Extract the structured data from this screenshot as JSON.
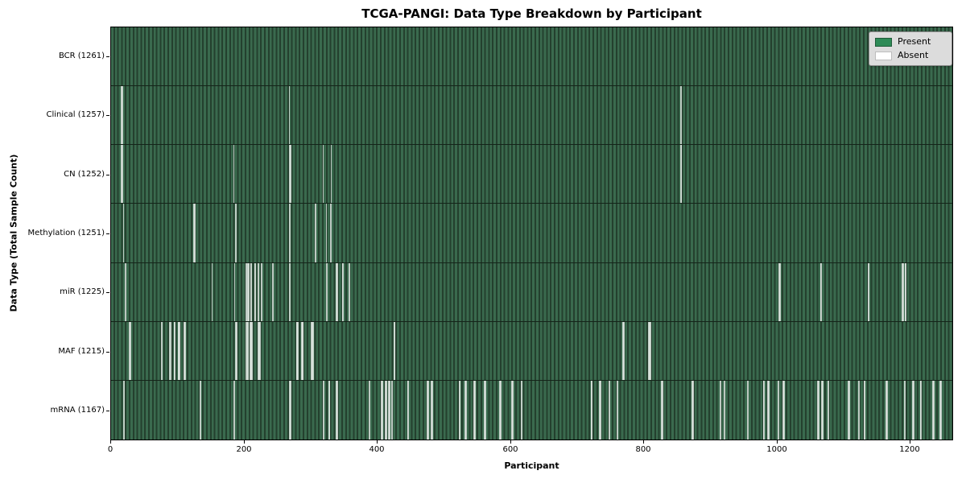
{
  "figure": {
    "title": "TCGA-PANGI: Data Type Breakdown by Participant",
    "xlabel": "Participant",
    "ylabel": "Data Type (Total Sample Count)"
  },
  "legend": {
    "items": [
      {
        "label": "Present",
        "color": "#2e8b57"
      },
      {
        "label": "Absent",
        "color": "#ffffff"
      }
    ]
  },
  "chart_data": {
    "type": "heatmap",
    "title": "TCGA-PANGI: Data Type Breakdown by Participant",
    "xlabel": "Participant",
    "ylabel": "Data Type (Total Sample Count)",
    "legend": [
      "Present",
      "Absent"
    ],
    "colors": {
      "present_fill": "#2e8b57",
      "bar_edge": "#000000",
      "absent_fill": "#ffffff",
      "legend_bg": "#dcdcdc"
    },
    "x_axis": {
      "label": "Participant",
      "ticks": [
        0,
        200,
        400,
        600,
        800,
        1000,
        1200
      ],
      "min": 0,
      "max": 1265,
      "n_participants": 1261
    },
    "grid": false,
    "legend_position": "upper right",
    "rows": [
      {
        "label": "BCR (1261)",
        "name": "BCR",
        "present_count": 1261,
        "absent_count": 0,
        "absent_participants": []
      },
      {
        "label": "Clinical (1257)",
        "name": "Clinical",
        "present_count": 1257,
        "absent_count": 4,
        "absent_participants": [
          15,
          16,
          267,
          856
        ]
      },
      {
        "label": "CN (1252)",
        "name": "CN",
        "present_count": 1252,
        "absent_count": 9,
        "absent_participants": [
          15,
          16,
          184,
          268,
          269,
          318,
          330,
          856,
          857
        ]
      },
      {
        "label": "Methylation (1251)",
        "name": "Methylation",
        "present_count": 1251,
        "absent_count": 10,
        "absent_participants": [
          18,
          124,
          125,
          187,
          268,
          306,
          307,
          323,
          329,
          330
        ]
      },
      {
        "label": "miR (1225)",
        "name": "miR",
        "present_count": 1225,
        "absent_count": 36,
        "absent_participants": [
          21,
          151,
          185,
          202,
          203,
          205,
          206,
          209,
          210,
          215,
          216,
          220,
          221,
          225,
          226,
          242,
          243,
          268,
          323,
          324,
          338,
          339,
          347,
          348,
          357,
          358,
          1004,
          1005,
          1066,
          1067,
          1138,
          1139,
          1189,
          1190,
          1193,
          1194
        ]
      },
      {
        "label": "MAF (1215)",
        "name": "MAF",
        "present_count": 1215,
        "absent_count": 46,
        "absent_participants": [
          27,
          28,
          75,
          76,
          87,
          88,
          89,
          94,
          95,
          100,
          101,
          102,
          109,
          110,
          111,
          187,
          188,
          202,
          203,
          204,
          205,
          208,
          209,
          210,
          211,
          220,
          221,
          222,
          223,
          278,
          279,
          280,
          286,
          287,
          288,
          300,
          301,
          302,
          303,
          425,
          426,
          769,
          770,
          808,
          809,
          810
        ]
      },
      {
        "label": "mRNA (1167)",
        "name": "mRNA",
        "present_count": 1167,
        "absent_count": 94,
        "absent_participants": [
          18,
          19,
          133,
          134,
          184,
          185,
          268,
          269,
          318,
          319,
          327,
          328,
          338,
          339,
          387,
          388,
          406,
          407,
          412,
          413,
          417,
          418,
          421,
          422,
          445,
          446,
          475,
          476,
          481,
          482,
          523,
          524,
          532,
          533,
          545,
          546,
          561,
          562,
          584,
          585,
          602,
          603,
          616,
          617,
          721,
          722,
          734,
          735,
          748,
          749,
          760,
          761,
          827,
          828,
          873,
          874,
          915,
          916,
          921,
          922,
          956,
          957,
          980,
          981,
          987,
          988,
          1002,
          1003,
          1010,
          1011,
          1062,
          1063,
          1068,
          1069,
          1077,
          1078,
          1108,
          1109,
          1123,
          1124,
          1132,
          1133,
          1165,
          1166,
          1192,
          1193,
          1205,
          1206,
          1216,
          1217,
          1235,
          1236,
          1246,
          1247
        ]
      }
    ]
  }
}
